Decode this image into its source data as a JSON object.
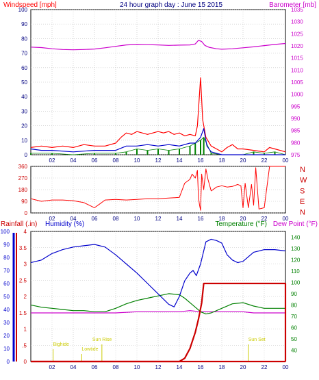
{
  "header": {
    "left_label": "Windspeed [mph]",
    "title": "24 hour graph day : June 15 2015",
    "right_label": "Barometer [mb]"
  },
  "colors": {
    "wind": "#ff0000",
    "wind_avg": "#0000cc",
    "gust_green": "#008000",
    "barometer": "#cc00cc",
    "humidity": "#0000cc",
    "temperature": "#008000",
    "dewpoint": "#cc00cc",
    "rain": "#cc0000",
    "markers": "#cccc00",
    "frame": "#000000",
    "grid": "#c0c0c0",
    "ticks_bg": "#ffffff"
  },
  "chart_data": [
    {
      "type": "line",
      "title": "24 hour graph day : June 15 2015",
      "xlabel": "",
      "ylabel_left": "Windspeed [mph]",
      "ylabel_right": "Barometer [mb]",
      "x_ticks": [
        "02",
        "04",
        "06",
        "08",
        "10",
        "12",
        "14",
        "16",
        "18",
        "20",
        "22",
        "00"
      ],
      "ylim_left": [
        0,
        100
      ],
      "yticks_left": [
        "0",
        "10",
        "20",
        "30",
        "40",
        "50",
        "60",
        "70",
        "80",
        "90",
        "100"
      ],
      "ylim_right": [
        975,
        1035
      ],
      "yticks_right": [
        "975",
        "980",
        "985",
        "990",
        "995",
        "1000",
        "1005",
        "1010",
        "1015",
        "1020",
        "1025",
        "1030",
        "1035"
      ],
      "series": [
        {
          "name": "Windspeed",
          "x": [
            0,
            1,
            2,
            3,
            4,
            5,
            6,
            7,
            8,
            8.5,
            9,
            9.5,
            10,
            10.5,
            11,
            11.5,
            12,
            12.5,
            13,
            13.5,
            14,
            14.5,
            15,
            15.5,
            15.7,
            16,
            16.2,
            16.5,
            17,
            17.5,
            18,
            18.5,
            19,
            19.5,
            20,
            21,
            22,
            22.5,
            23,
            24
          ],
          "values": [
            5,
            6,
            5,
            6,
            5,
            7,
            6,
            6,
            8,
            12,
            15,
            14,
            16,
            15,
            14,
            15,
            16,
            15,
            16,
            14,
            15,
            13,
            14,
            13,
            20,
            53,
            24,
            12,
            6,
            4,
            2,
            5,
            7,
            4,
            4,
            3,
            2,
            5,
            4,
            2
          ]
        },
        {
          "name": "Windspeed average",
          "x": [
            0,
            1,
            2,
            4,
            6,
            8,
            9,
            10,
            11,
            12,
            13,
            14,
            15,
            15.5,
            16,
            16.3,
            16.6,
            17,
            18,
            19,
            20,
            22,
            24
          ],
          "values": [
            4,
            3,
            3,
            2,
            3,
            3,
            6,
            6,
            7,
            6,
            7,
            6,
            8,
            8,
            12,
            18,
            6,
            2,
            0,
            0,
            0,
            0,
            0
          ]
        },
        {
          "name": "Wind gust",
          "x": [
            0,
            2,
            4,
            6,
            8,
            9,
            10,
            11,
            12,
            13,
            14,
            15,
            15.5,
            16,
            16.3,
            17,
            18,
            20,
            21,
            22,
            23,
            24
          ],
          "values": [
            1,
            1,
            0,
            1,
            1,
            2,
            4,
            3,
            4,
            3,
            4,
            6,
            8,
            10,
            12,
            1,
            0,
            0,
            2,
            1,
            2,
            0
          ]
        },
        {
          "name": "Barometer",
          "x": [
            0,
            1,
            2,
            3,
            4,
            5,
            6,
            7,
            8,
            9,
            10,
            11,
            12,
            13,
            14,
            15,
            15.5,
            15.8,
            16.1,
            16.4,
            16.8,
            17.5,
            18,
            19,
            20,
            21,
            22,
            23,
            24
          ],
          "values": [
            1019.5,
            1019.3,
            1018.8,
            1018.5,
            1018.4,
            1018.5,
            1018.7,
            1019.2,
            1019.8,
            1020.4,
            1020.6,
            1020.5,
            1020.4,
            1020.2,
            1020.3,
            1020.4,
            1020.8,
            1022.3,
            1021.8,
            1020.2,
            1019.4,
            1018.8,
            1018.6,
            1018.8,
            1019.2,
            1019.6,
            1020.1,
            1020.6,
            1021.0
          ]
        }
      ]
    },
    {
      "type": "line",
      "title": "",
      "ylabel_right_letters": [
        "N",
        "W",
        "S",
        "E",
        "N"
      ],
      "x_ticks": [
        "02",
        "04",
        "06",
        "08",
        "10",
        "12",
        "14",
        "16",
        "18",
        "20",
        "22",
        "00"
      ],
      "ylim": [
        0,
        360
      ],
      "yticks": [
        "0",
        "90",
        "180",
        "270",
        "360"
      ],
      "series": [
        {
          "name": "Wind direction",
          "x": [
            0,
            0.5,
            1,
            2,
            3,
            4,
            5,
            5.5,
            6,
            6.5,
            7,
            8,
            9,
            10,
            11,
            12,
            13,
            14,
            14.5,
            15,
            15.2,
            15.5,
            15.7,
            15.8,
            15.9,
            16,
            16.1,
            16.3,
            16.5,
            16.7,
            17,
            17.5,
            18,
            18.5,
            19,
            19.5,
            19.8,
            20,
            20.2,
            20.5,
            20.8,
            21,
            21.2,
            21.5,
            22,
            22.5,
            23,
            23.5,
            24
          ],
          "values": [
            110,
            100,
            90,
            100,
            100,
            95,
            80,
            60,
            40,
            70,
            100,
            105,
            100,
            105,
            110,
            110,
            115,
            120,
            230,
            260,
            300,
            270,
            330,
            120,
            60,
            20,
            300,
            180,
            340,
            260,
            170,
            200,
            210,
            200,
            205,
            220,
            210,
            40,
            230,
            40,
            220,
            60,
            350,
            30,
            40,
            360,
            360,
            360,
            360
          ]
        }
      ]
    },
    {
      "type": "line",
      "title": "",
      "ylabel_left_outer": "Rainfall (.in)",
      "ylabel_left_inner": "Humidity (%)",
      "ylabel_right_inner": "Temperature (°F)",
      "ylabel_right_outer": "Dew Point (°F)",
      "x_ticks": [
        "02",
        "04",
        "06",
        "08",
        "10",
        "12",
        "14",
        "16",
        "18",
        "20",
        "22",
        "00"
      ],
      "ylim_rain": [
        0,
        4
      ],
      "yticks_rain": [
        "0",
        ".5",
        "1",
        "1.5",
        "2",
        "2.5",
        "3",
        "3.5",
        "4"
      ],
      "ylim_humidity": [
        0,
        100
      ],
      "yticks_humidity": [
        "0",
        "10",
        "20",
        "30",
        "40",
        "50",
        "60",
        "70",
        "80",
        "90",
        "100"
      ],
      "ylim_temperature": [
        30,
        145
      ],
      "yticks_temperature": [
        "40",
        "50",
        "60",
        "70",
        "80",
        "90",
        "100",
        "110",
        "120",
        "130",
        "140"
      ],
      "annotations": [
        "Bighide",
        "Lowtide",
        "Sun Rise",
        "Sun Set"
      ],
      "series": [
        {
          "name": "Humidity",
          "x": [
            0,
            1,
            2,
            3,
            4,
            5,
            6,
            7,
            8,
            9,
            10,
            11,
            12,
            13,
            13.5,
            14,
            14.5,
            15,
            15.3,
            15.6,
            16,
            16.5,
            17,
            17.5,
            18,
            18.5,
            19,
            19.5,
            20,
            21,
            22,
            23,
            24
          ],
          "values": [
            76,
            78,
            83,
            86,
            88,
            89,
            90,
            88,
            82,
            75,
            68,
            60,
            52,
            44,
            42,
            50,
            62,
            68,
            70,
            66,
            75,
            92,
            94,
            93,
            91,
            82,
            78,
            76,
            77,
            84,
            86,
            86,
            85
          ]
        },
        {
          "name": "Temperature",
          "x": [
            0,
            1,
            2,
            3,
            4,
            5,
            6,
            7,
            8,
            9,
            10,
            11,
            12,
            13,
            14,
            14.5,
            15,
            15.5,
            16,
            16.5,
            17,
            18,
            19,
            20,
            21,
            22,
            23,
            24
          ],
          "values": [
            80,
            78,
            77,
            76,
            75,
            75,
            74,
            74,
            77,
            81,
            84,
            86,
            88,
            90,
            89,
            86,
            82,
            78,
            74,
            72,
            73,
            77,
            81,
            82,
            79,
            77,
            77,
            77
          ]
        },
        {
          "name": "Dew Point",
          "x": [
            0,
            2,
            4,
            6,
            8,
            10,
            12,
            14,
            15,
            16,
            17,
            18,
            20,
            21,
            22,
            24
          ],
          "values": [
            73,
            73,
            73,
            73,
            73,
            74,
            74,
            74,
            75,
            74,
            74,
            74,
            74,
            73,
            73,
            73
          ]
        },
        {
          "name": "Rainfall",
          "x": [
            0,
            13,
            14,
            14.5,
            15,
            15.2,
            15.5,
            15.8,
            16.1,
            16.3,
            24,
            24
          ],
          "values": [
            0,
            0,
            0,
            0.1,
            0.4,
            0.6,
            0.9,
            1.3,
            1.8,
            2.4,
            2.4,
            0
          ]
        }
      ]
    }
  ]
}
